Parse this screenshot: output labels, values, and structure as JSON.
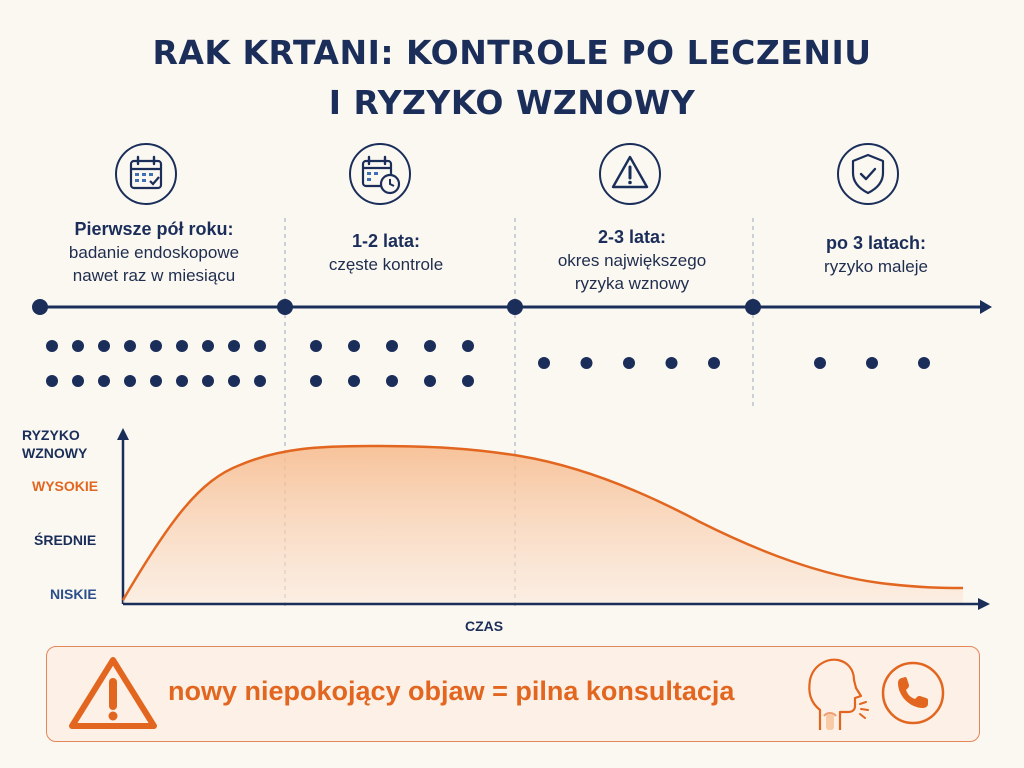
{
  "title": {
    "line1": "RAK KRTANI: KONTROLE PO LECZENIU",
    "line2": "I RYZYKO WZNOWY"
  },
  "stages": [
    {
      "icon": "calendar-check-icon",
      "title": "Pierwsze pół roku:",
      "desc1": "badanie endoskopowe",
      "desc2": "nawet raz w miesiącu",
      "visit_dots": 18
    },
    {
      "icon": "calendar-clock-icon",
      "title": "1-2 lata:",
      "desc1": "częste kontrole",
      "desc2": "",
      "visit_dots": 10
    },
    {
      "icon": "warning-icon",
      "title": "2-3 lata:",
      "desc1": "okres największego",
      "desc2": "ryzyka wznowy",
      "visit_dots": 5
    },
    {
      "icon": "shield-check-icon",
      "title": "po 3 latach:",
      "desc1": "ryzyko maleje",
      "desc2": "",
      "visit_dots": 3
    }
  ],
  "risk_chart": {
    "y_axis_title_line1": "RYZYKO",
    "y_axis_title_line2": "WZNOWY",
    "levels": {
      "high": "WYSOKIE",
      "medium": "ŚREDNIE",
      "low": "NISKIE"
    },
    "x_axis_label": "CZAS"
  },
  "alert": {
    "text": "nowy niepokojący objaw = pilna konsultacja",
    "icons": [
      "warning-icon",
      "throat-symptom-icon",
      "phone-icon"
    ]
  },
  "colors": {
    "navy": "#1b2e5a",
    "accent_orange": "#e2661f",
    "curve_fill": "#f6c8a2"
  }
}
